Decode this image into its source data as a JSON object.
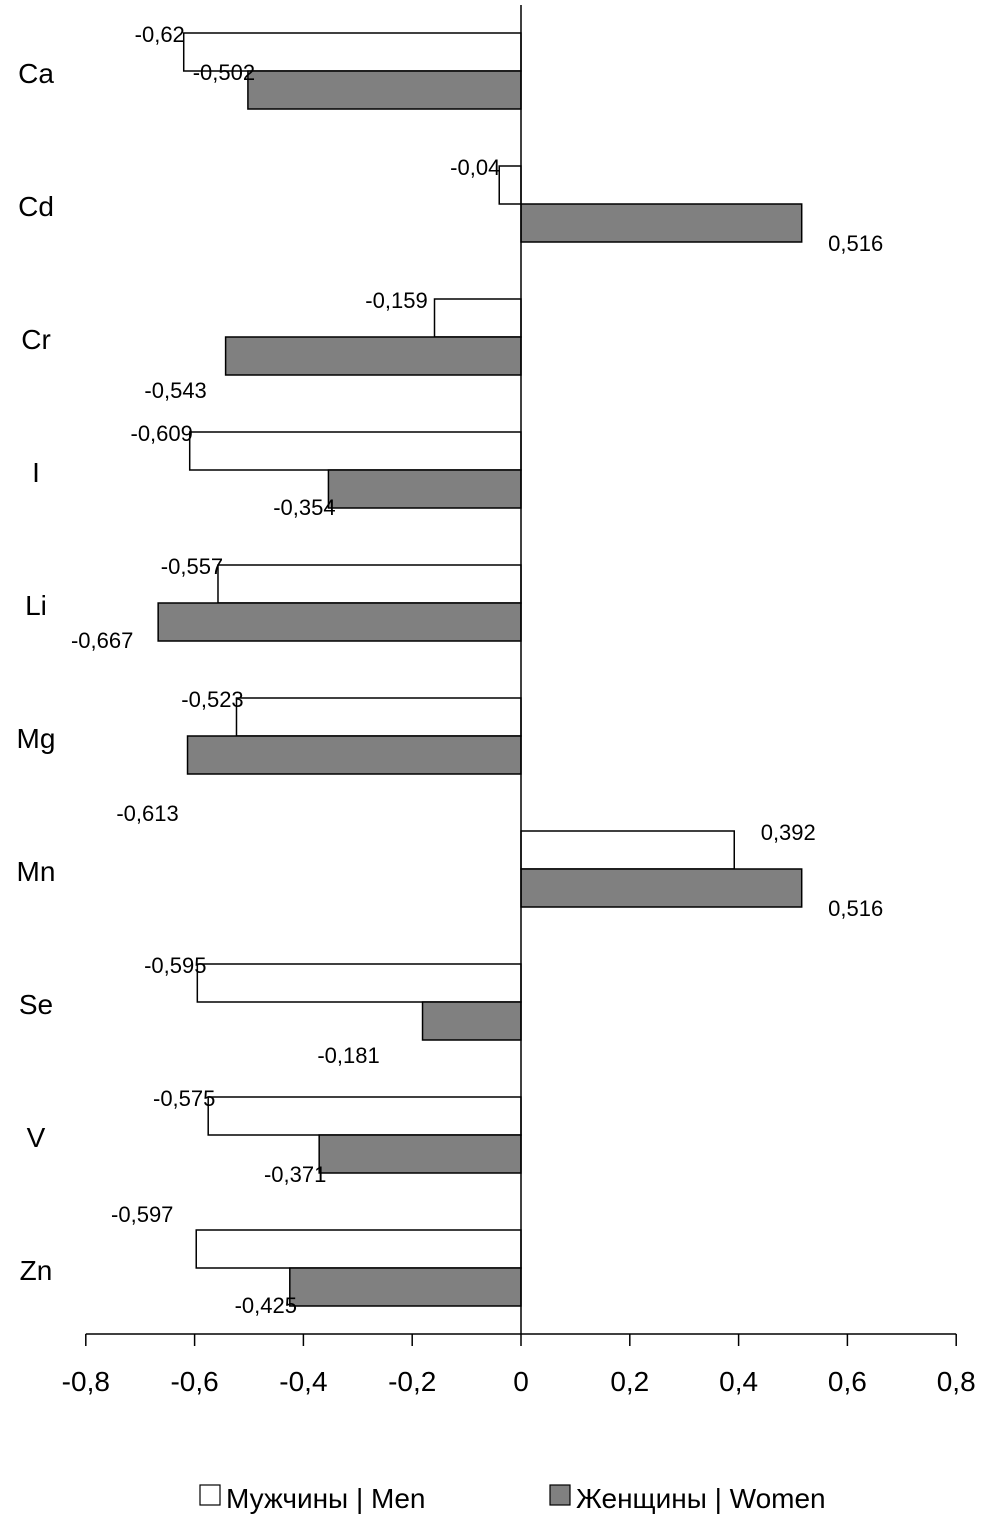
{
  "chart_data": {
    "type": "bar",
    "orientation": "horizontal",
    "categories": [
      "Ca",
      "Cd",
      "Cr",
      "I",
      "Li",
      "Mg",
      "Mn",
      "Se",
      "V",
      "Zn"
    ],
    "series": [
      {
        "name": "Мужчины | Men",
        "color": "#ffffff",
        "values": [
          -0.62,
          -0.04,
          -0.159,
          -0.609,
          -0.557,
          -0.523,
          0.392,
          -0.595,
          -0.575,
          -0.597
        ],
        "labels": [
          "-0,62",
          "-0,04",
          "-0,159",
          "-0,609",
          "-0,557",
          "-0,523",
          "0,392",
          "-0,595",
          "-0,575",
          "-0,597"
        ]
      },
      {
        "name": "Женщины | Women",
        "color": "#808080",
        "values": [
          -0.502,
          0.516,
          -0.543,
          -0.354,
          -0.667,
          -0.613,
          0.516,
          -0.181,
          -0.371,
          -0.425
        ],
        "labels": [
          "-0,502",
          "0,516",
          "-0,543",
          "-0,354",
          "-0,667",
          "-0,613",
          "0,516",
          "-0,181",
          "-0,371",
          "-0,425"
        ]
      }
    ],
    "xlim": [
      -0.8,
      0.8
    ],
    "xticks": [
      -0.8,
      -0.6,
      -0.4,
      -0.2,
      0,
      0.2,
      0.4,
      0.6,
      0.8
    ],
    "xtick_labels": [
      "-0,8",
      "-0,6",
      "-0,4",
      "-0,2",
      "0",
      "0,2",
      "0,4",
      "0,6",
      "0,8"
    ],
    "title": "",
    "xlabel": "",
    "ylabel": "",
    "grid": false,
    "legend_position": "bottom"
  }
}
